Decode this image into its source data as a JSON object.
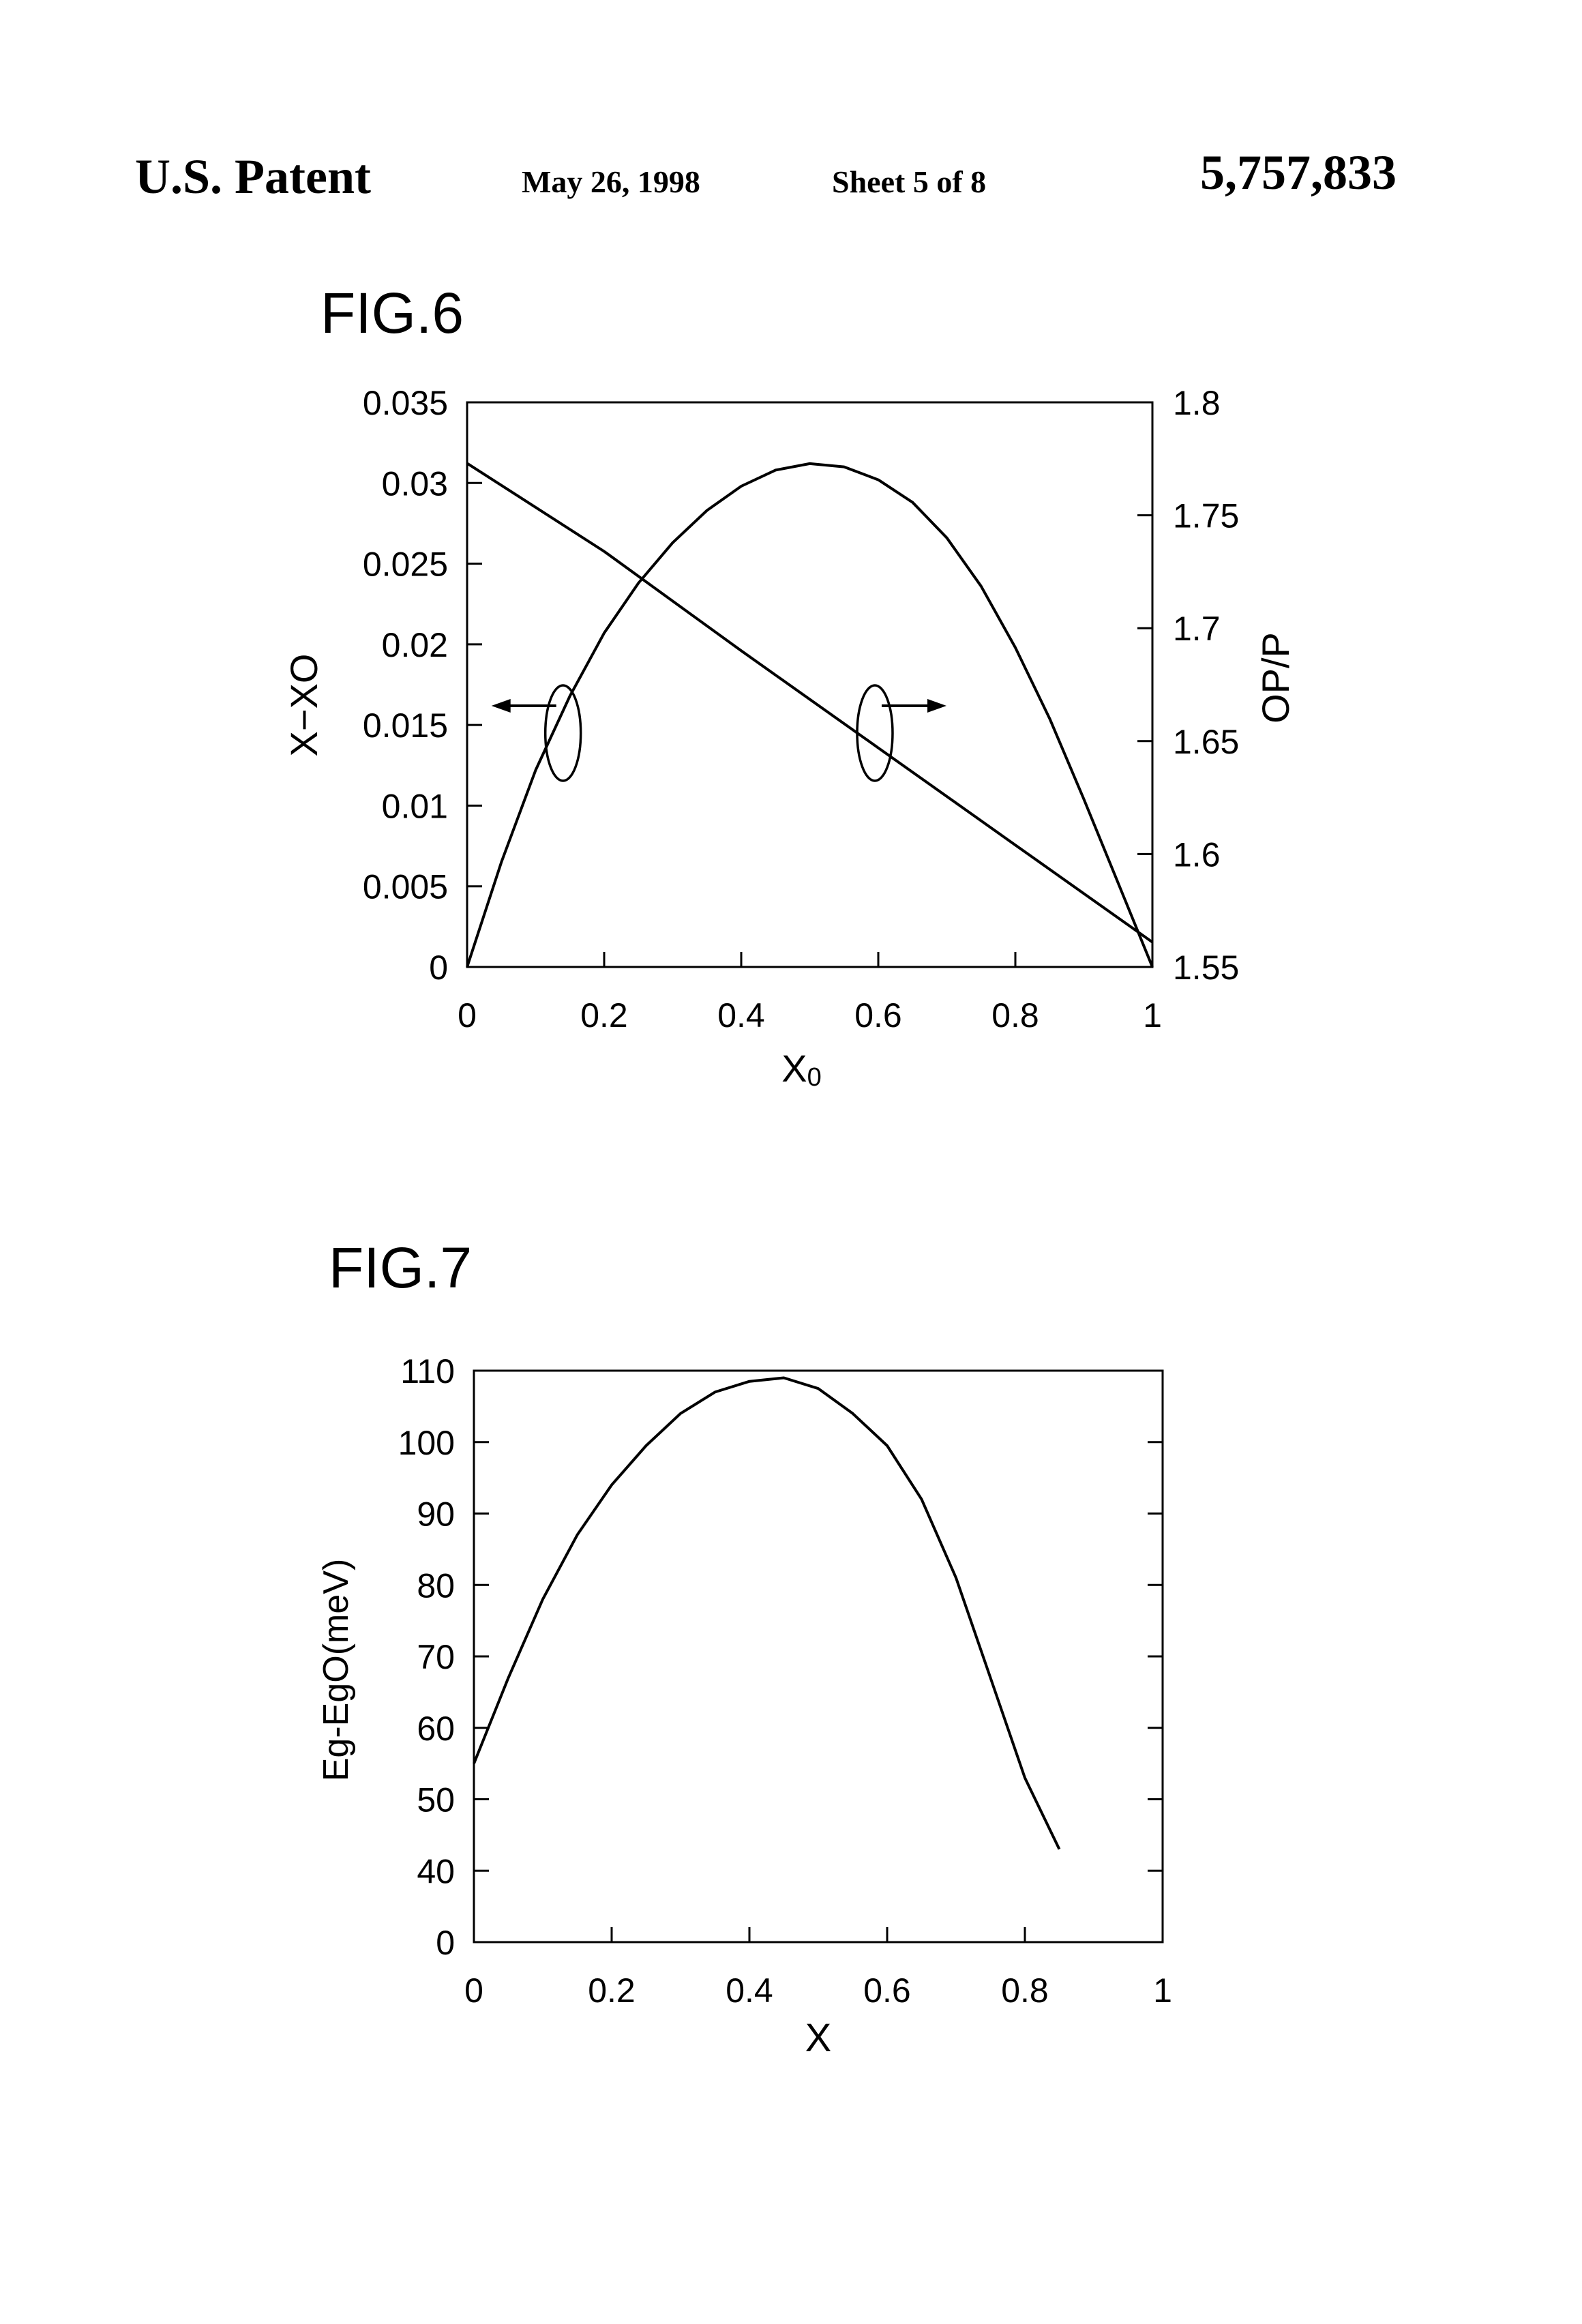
{
  "header": {
    "left": "U.S. Patent",
    "date": "May 26, 1998",
    "sheet": "Sheet 5 of 8",
    "patent_number": "5,757,833"
  },
  "colors": {
    "ink": "#000000",
    "background": "#ffffff"
  },
  "chart_data": [
    {
      "type": "line",
      "fig_label": "FIG.6",
      "xlabel_main": "X",
      "xlabel_sub": "0",
      "ylabel_left": "X−XO",
      "ylabel_right": "OP/P",
      "xlim": [
        0,
        1
      ],
      "ylim_left": [
        0,
        0.035
      ],
      "ylim_right": [
        1.55,
        1.8
      ],
      "x_ticks": [
        "0",
        "0.2",
        "0.4",
        "0.6",
        "0.8",
        "1"
      ],
      "y_ticks_left": [
        "0",
        "0.005",
        "0.01",
        "0.015",
        "0.02",
        "0.025",
        "0.03",
        "0.035"
      ],
      "y_ticks_right": [
        "1.55",
        "1.6",
        "1.65",
        "1.7",
        "1.75",
        "1.8"
      ],
      "grid": false,
      "annotations": [
        {
          "type": "ellipse-arrow",
          "x": 0.14,
          "y": 0.0145,
          "points_to": "left-axis"
        },
        {
          "type": "ellipse-arrow",
          "x": 0.595,
          "y": 0.0145,
          "points_to": "right-axis"
        }
      ],
      "series": [
        {
          "axis": "left",
          "x": [
            0,
            0.05,
            0.1,
            0.15,
            0.2,
            0.25,
            0.3,
            0.35,
            0.4,
            0.45,
            0.5,
            0.55,
            0.6,
            0.65,
            0.7,
            0.75,
            0.8,
            0.85,
            0.9,
            0.95,
            1.0
          ],
          "y": [
            0,
            0.0065,
            0.0122,
            0.0168,
            0.0207,
            0.0238,
            0.0263,
            0.0283,
            0.0298,
            0.0308,
            0.0312,
            0.031,
            0.0302,
            0.0288,
            0.0266,
            0.0236,
            0.0198,
            0.0154,
            0.0104,
            0.0052,
            0
          ]
        },
        {
          "axis": "right",
          "x": [
            0,
            0.2,
            0.4,
            0.6,
            0.8,
            1.0
          ],
          "y": [
            1.773,
            1.734,
            1.69,
            1.647,
            1.604,
            1.561
          ]
        }
      ]
    },
    {
      "type": "line",
      "fig_label": "FIG.7",
      "xlabel": "X",
      "ylabel": "Eg-EgO(meV)",
      "xlim": [
        0,
        1
      ],
      "x_ticks": [
        "0",
        "0.2",
        "0.4",
        "0.6",
        "0.8",
        "1"
      ],
      "y_ticks": [
        "0",
        "40",
        "50",
        "60",
        "70",
        "80",
        "90",
        "100",
        "110"
      ],
      "y_note": "axis is broken between 0 and 40",
      "grid": false,
      "series": [
        {
          "x": [
            0,
            0.05,
            0.1,
            0.15,
            0.2,
            0.25,
            0.3,
            0.35,
            0.4,
            0.45,
            0.5,
            0.55,
            0.6,
            0.65,
            0.7,
            0.75,
            0.8,
            0.85
          ],
          "y": [
            55,
            67,
            78,
            87,
            94,
            99.5,
            104,
            107,
            108.5,
            109,
            107.5,
            104,
            99.5,
            92,
            81,
            67,
            53,
            43
          ]
        }
      ]
    }
  ]
}
